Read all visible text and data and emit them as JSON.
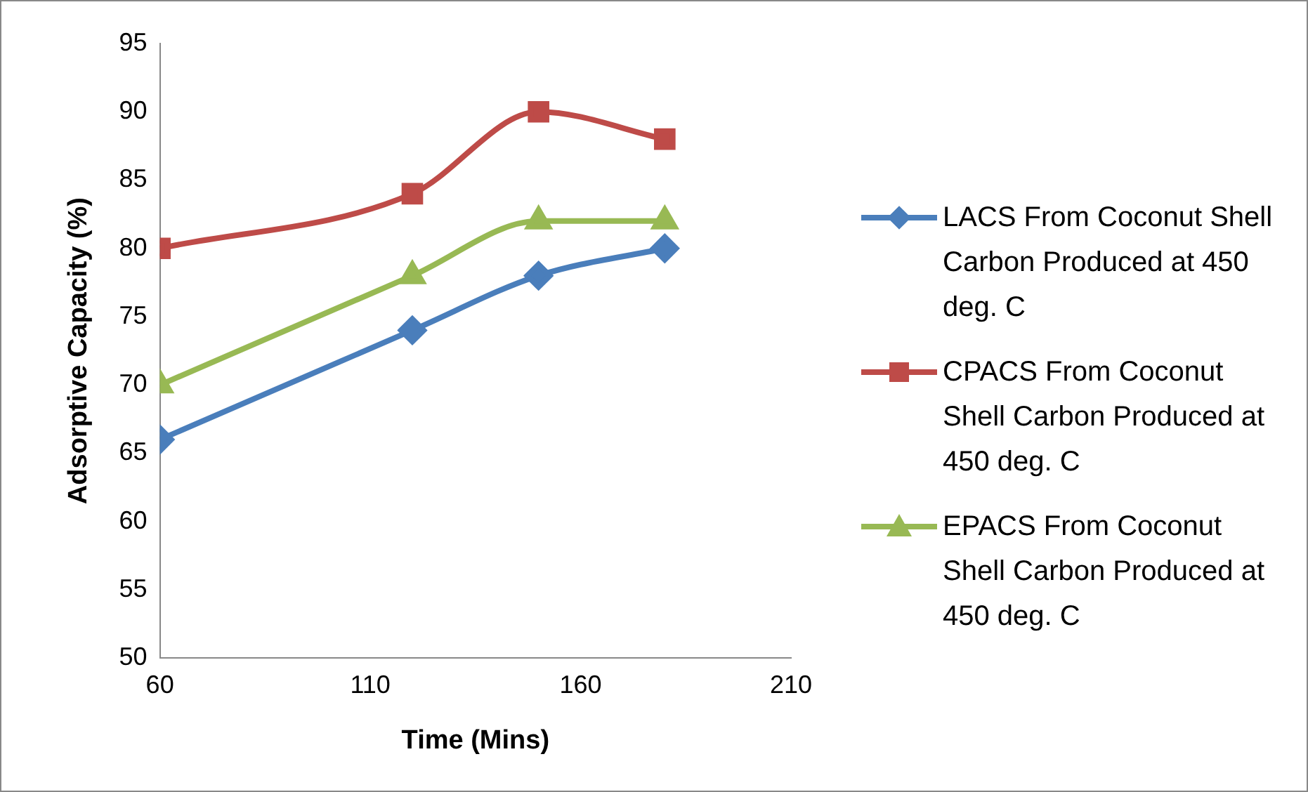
{
  "chart_data": {
    "type": "line",
    "xlabel": "Time (Mins)",
    "ylabel": "Adsorptive Capacity (%)",
    "x": [
      60,
      120,
      150,
      180
    ],
    "xlim": [
      60,
      210
    ],
    "xticks": [
      60,
      110,
      160,
      210
    ],
    "ylim": [
      50,
      95
    ],
    "yticks": [
      50,
      55,
      60,
      65,
      70,
      75,
      80,
      85,
      90,
      95
    ],
    "grid": false,
    "legend": "right",
    "line_style": "solid",
    "series": [
      {
        "name": "LACS From Coconut Shell Carbon Produced at 450 deg. C",
        "color": "#4a7ebb",
        "marker": "diamond",
        "values": [
          66,
          74,
          78,
          80
        ]
      },
      {
        "name": "CPACS From Coconut Shell Carbon Produced at 450 deg. C",
        "color": "#be4b48",
        "marker": "square",
        "values": [
          80,
          84,
          90,
          88
        ]
      },
      {
        "name": "EPACS From Coconut Shell Carbon Produced at 450 deg. C",
        "color": "#98b954",
        "marker": "triangle",
        "values": [
          70,
          78,
          82,
          82
        ]
      }
    ]
  }
}
